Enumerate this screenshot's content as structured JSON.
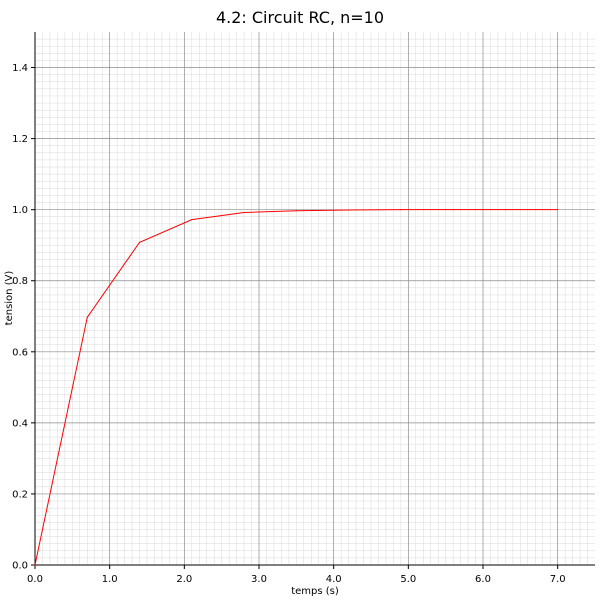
{
  "chart_data": {
    "type": "line",
    "title": "4.2: Circuit RC, n=10",
    "xlabel": "temps (s)",
    "ylabel": "tension (V)",
    "xlim": [
      0,
      7.5
    ],
    "ylim": [
      0,
      1.5
    ],
    "xticks": [
      0.0,
      1.0,
      2.0,
      3.0,
      4.0,
      5.0,
      6.0,
      7.0
    ],
    "xtick_labels": [
      "0.0",
      "1.0",
      "2.0",
      "3.0",
      "4.0",
      "5.0",
      "6.0",
      "7.0"
    ],
    "yticks": [
      0.0,
      0.2,
      0.4,
      0.6,
      0.8,
      1.0,
      1.2,
      1.4
    ],
    "ytick_labels": [
      "0.0",
      "0.2",
      "0.4",
      "0.6",
      "0.8",
      "1.0",
      "1.2",
      "1.4"
    ],
    "grid": "major and minor",
    "legend": "none",
    "series": [
      {
        "color": "#ff0000",
        "x": [
          0.0,
          0.7,
          1.4,
          2.1,
          2.8,
          3.5,
          4.2,
          4.9,
          5.6,
          6.3,
          7.0
        ],
        "y": [
          0.0,
          0.697,
          0.908,
          0.972,
          0.992,
          0.997,
          0.999,
          1.0,
          1.0,
          1.0,
          1.0
        ]
      }
    ]
  }
}
